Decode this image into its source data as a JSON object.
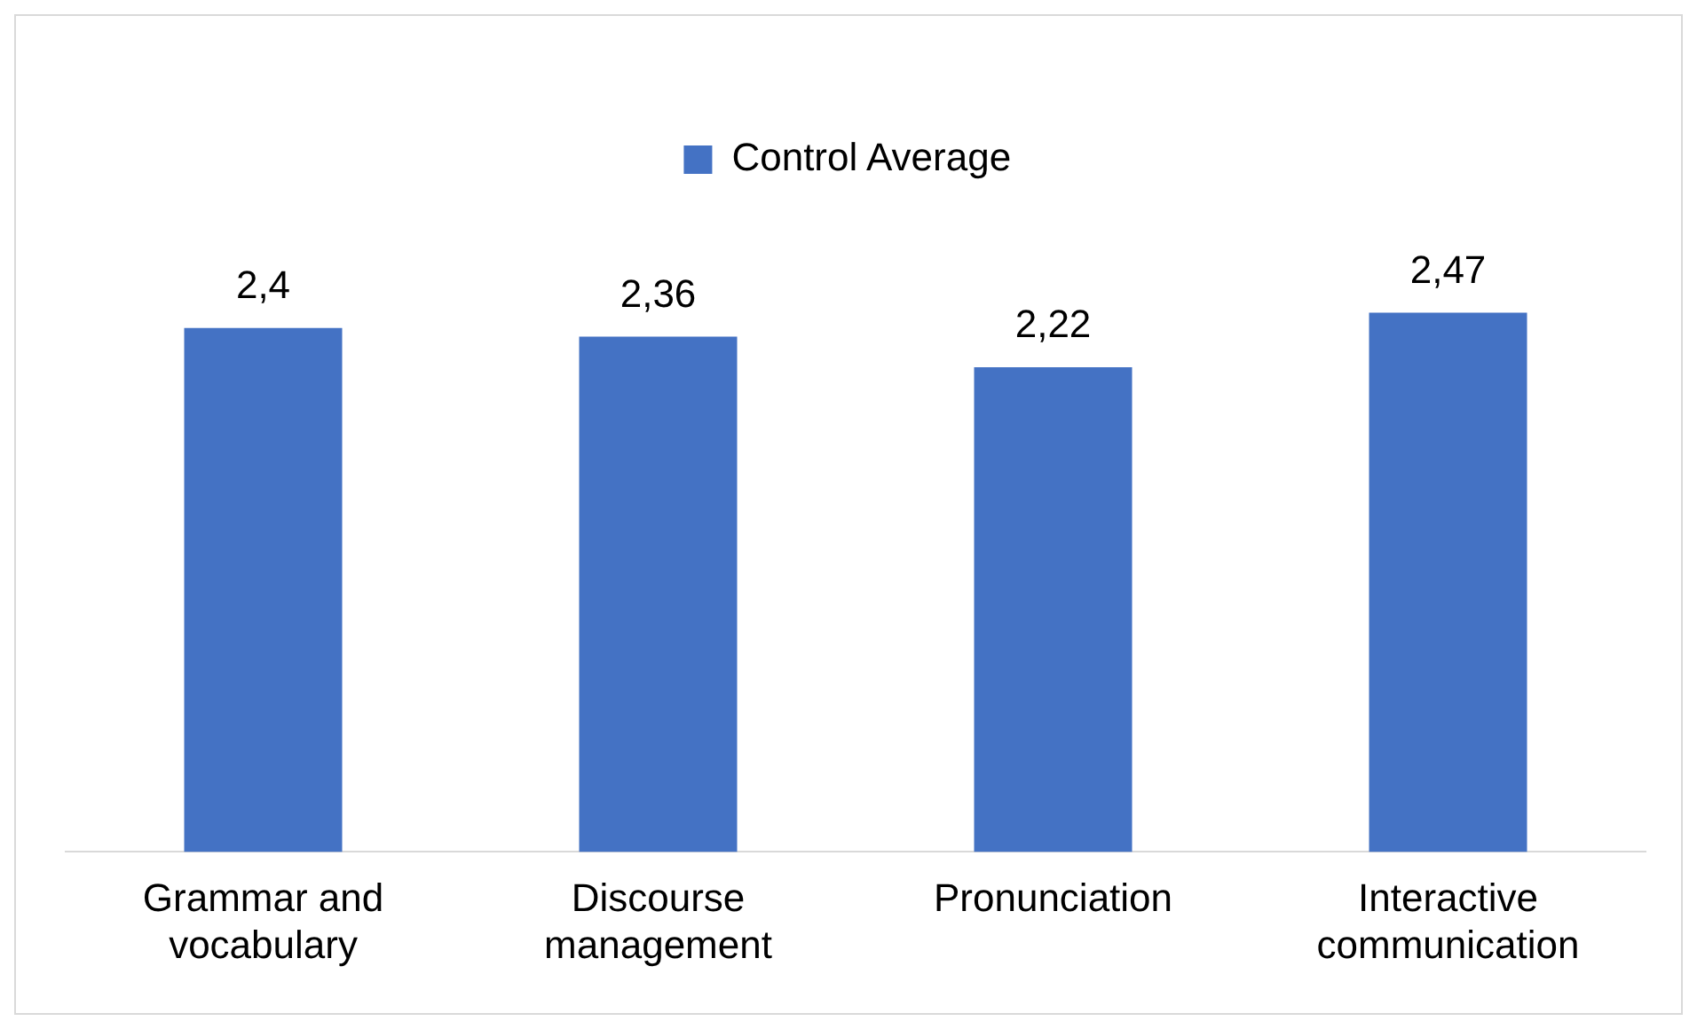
{
  "chart_data": {
    "type": "bar",
    "categories": [
      "Grammar and vocabulary",
      "Discourse management",
      "Pronunciation",
      "Interactive communication"
    ],
    "series": [
      {
        "name": "Control Average",
        "color": "#4472c4",
        "values": [
          2.4,
          2.36,
          2.22,
          2.47
        ],
        "value_labels": [
          "2,4",
          "2,36",
          "2,22",
          "2,47"
        ]
      }
    ],
    "tick_labels": "x",
    "legend": "top",
    "grid": false
  }
}
